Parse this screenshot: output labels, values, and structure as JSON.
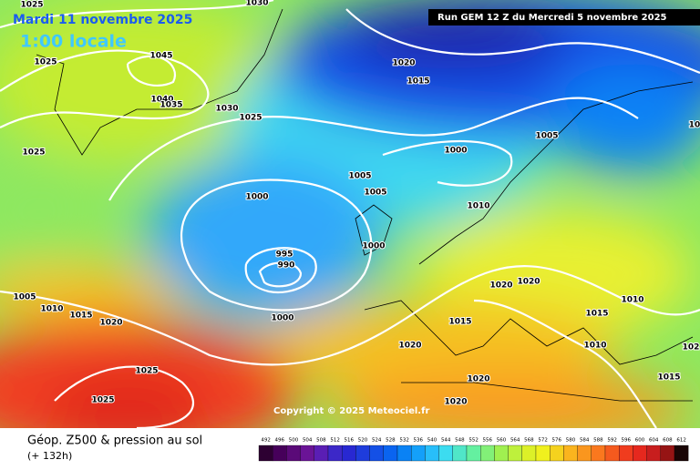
{
  "header": {
    "date": "Mardi 11 novembre 2025",
    "time": "1:00 locale",
    "run": "Run GEM 12 Z du Mercredi 5 novembre 2025"
  },
  "copyright": "Copyright © 2025 Meteociel.fr",
  "footer": {
    "title": "Géop. Z500 & pression au sol",
    "lead": "(+ 132h)"
  },
  "isobar_labels": [
    1025,
    1030,
    1025,
    1045,
    1020,
    1015,
    1040,
    1035,
    1030,
    1025,
    1025,
    1005,
    1000,
    1005,
    1005,
    1000,
    1010,
    1000,
    995,
    990,
    1005,
    1010,
    1015,
    1020,
    1020,
    1020,
    1010,
    1015,
    1015,
    1000,
    1020,
    1010,
    1025,
    1025,
    1020,
    1020,
    1015,
    102,
    10
  ],
  "legend": [
    {
      "label": 492,
      "color": "#2d0032"
    },
    {
      "label": 496,
      "color": "#46005a"
    },
    {
      "label": 500,
      "color": "#5a0a78"
    },
    {
      "label": 504,
      "color": "#6a1496"
    },
    {
      "label": 508,
      "color": "#5a1eb4"
    },
    {
      "label": 512,
      "color": "#3c28c8"
    },
    {
      "label": 516,
      "color": "#2828d2"
    },
    {
      "label": 520,
      "color": "#1e3cdc"
    },
    {
      "label": 524,
      "color": "#1450e6"
    },
    {
      "label": 528,
      "color": "#0a64f0"
    },
    {
      "label": 532,
      "color": "#0a82f5"
    },
    {
      "label": 536,
      "color": "#14a0fa"
    },
    {
      "label": 540,
      "color": "#28befa"
    },
    {
      "label": 544,
      "color": "#3cdcf0"
    },
    {
      "label": 548,
      "color": "#50e6c8"
    },
    {
      "label": 552,
      "color": "#64f0a0"
    },
    {
      "label": 556,
      "color": "#82f078"
    },
    {
      "label": 560,
      "color": "#a0f050"
    },
    {
      "label": 564,
      "color": "#bef03c"
    },
    {
      "label": 568,
      "color": "#dcf028"
    },
    {
      "label": 572,
      "color": "#f0f01e"
    },
    {
      "label": 576,
      "color": "#f5d21e"
    },
    {
      "label": 580,
      "color": "#fab41e"
    },
    {
      "label": 584,
      "color": "#fa961e"
    },
    {
      "label": 588,
      "color": "#fa781e"
    },
    {
      "label": 592,
      "color": "#f55a1e"
    },
    {
      "label": 596,
      "color": "#f03c1e"
    },
    {
      "label": 600,
      "color": "#e6281e"
    },
    {
      "label": 604,
      "color": "#c81e1e"
    },
    {
      "label": 608,
      "color": "#961414"
    },
    {
      "label": 612,
      "color": "#1a0505"
    }
  ]
}
